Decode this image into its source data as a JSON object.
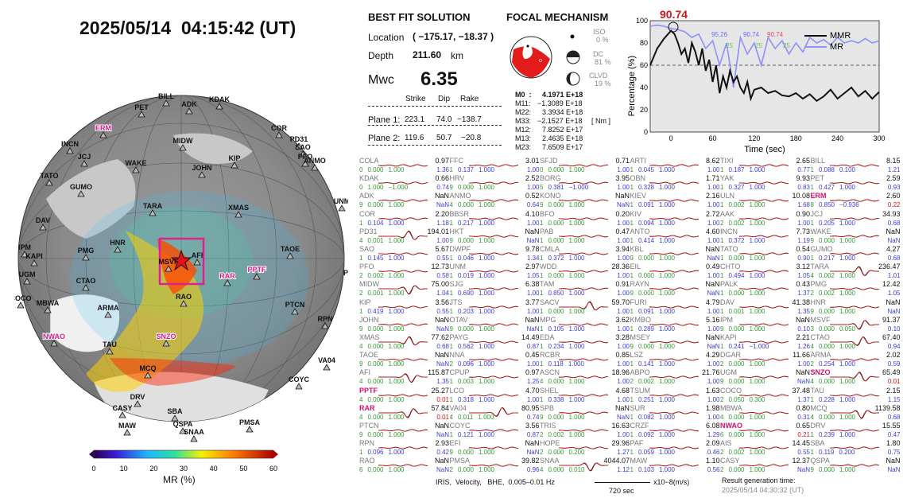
{
  "date_title": "2025/05/14  04:15:42 (UT)",
  "bfs": {
    "title": "BEST FIT SOLUTION",
    "location_label": "Location",
    "location_value": "( −175.17, −18.37 )",
    "depth_label": "Depth",
    "depth_value": "211.60",
    "depth_unit": "km",
    "mwc_label": "Mwc",
    "mwc_value": "6.35",
    "headers": [
      "Strike",
      "Dip",
      "Rake"
    ],
    "plane1_label": "Plane 1:",
    "plane1": [
      "223.1",
      "74.0",
      "−138.7"
    ],
    "plane2_label": "Plane 2:",
    "plane2": [
      "119.6",
      "50.7",
      "−20.8"
    ]
  },
  "fm": {
    "title": "FOCAL MECHANISM",
    "iso_label": "ISO",
    "iso_value": "0 %",
    "dc_label": "DC",
    "dc_value": "81 %",
    "clvd_label": "CLVD",
    "clvd_value": "19 %",
    "moments": [
      {
        "label": "M0  :",
        "value": "4.1971 E+18"
      },
      {
        "label": "M11:",
        "value": "−1.3089 E+18"
      },
      {
        "label": "M22:",
        "value": "3.3934 E+18"
      },
      {
        "label": "M33:",
        "value": "−2.1527 E+18"
      },
      {
        "label": "M12:",
        "value": "7.8252 E+17"
      },
      {
        "label": "M13:",
        "value": "2.4635 E+18"
      },
      {
        "label": "M23:",
        "value": "7.6509 E+17"
      }
    ],
    "unit": "[ Nm ]"
  },
  "mr_chart": {
    "peak_label": "90.74",
    "ylabel": "Percentage (%)",
    "xlabel": "Time (sec)",
    "legend": [
      "MMR",
      "MR"
    ],
    "inline_labels": [
      "95.26",
      "90.74",
      "90.74",
      "25",
      "25",
      "25"
    ],
    "x_ticks": [
      "0",
      "60",
      "120",
      "180",
      "240",
      "300"
    ],
    "y_ticks": [
      "0",
      "20",
      "40",
      "60",
      "80",
      "100"
    ]
  },
  "chart_data": {
    "type": "line",
    "xlabel": "Time (sec)",
    "ylabel": "Percentage (%)",
    "xlim": [
      -30,
      300
    ],
    "ylim": [
      0,
      100
    ],
    "threshold": 60,
    "series": [
      {
        "name": "MMR",
        "x": [
          -30,
          -20,
          -10,
          0,
          5,
          10,
          15,
          20,
          25,
          30,
          35,
          40,
          45,
          50,
          55,
          60,
          65,
          70,
          75,
          80,
          85,
          90,
          95,
          100,
          105,
          110,
          115,
          120,
          130,
          140,
          150,
          160,
          170,
          180,
          190,
          200,
          210,
          220,
          230,
          240,
          250,
          260,
          270,
          280,
          290,
          300
        ],
        "y": [
          60,
          75,
          84,
          91,
          88,
          80,
          70,
          75,
          62,
          80,
          72,
          60,
          75,
          55,
          65,
          45,
          60,
          35,
          50,
          40,
          55,
          45,
          50,
          40,
          35,
          45,
          30,
          38,
          40,
          35,
          37,
          33,
          32,
          35,
          30,
          34,
          28,
          32,
          38,
          30,
          35,
          40,
          32,
          37,
          30,
          36
        ]
      },
      {
        "name": "MR",
        "x": [
          -30,
          -20,
          -10,
          0,
          10,
          20,
          30,
          40,
          50,
          60,
          70,
          80,
          90,
          100,
          110,
          120,
          130,
          140,
          150,
          160,
          170,
          180,
          190,
          200,
          210,
          220,
          230,
          240,
          250,
          260,
          270,
          280,
          290,
          300
        ],
        "y": [
          95,
          96,
          95,
          93,
          92,
          90,
          85,
          88,
          75,
          82,
          60,
          80,
          40,
          85,
          70,
          80,
          60,
          85,
          75,
          82,
          70,
          80,
          72,
          85,
          80,
          83,
          78,
          85,
          80,
          82,
          80,
          84,
          80,
          82
        ]
      }
    ]
  },
  "map": {
    "stations": [
      "BILL",
      "ADK",
      "KDAK",
      "PET",
      "COR",
      "ERM",
      "INCN",
      "PD31",
      "SAO",
      "PFO",
      "ANMO",
      "JCJ",
      "TATO",
      "GUMO",
      "WAKE",
      "MIDW",
      "JOHN",
      "KIP",
      "TARA",
      "XMAS",
      "UNM",
      "DAV",
      "HNR",
      "TAOE",
      "PAYG",
      "IPM",
      "KAPI",
      "PMG",
      "AFI",
      "MSVF",
      "RAR",
      "PPTF",
      "UGM",
      "CTAO",
      "RAO",
      "COCO",
      "MBWA",
      "ARMA",
      "PTCN",
      "RPN",
      "NWAO",
      "SNZO",
      "TAU",
      "VA04",
      "MCQ",
      "COYC",
      "DRV",
      "CASY",
      "SBA",
      "QSPA",
      "MAW",
      "SNAA",
      "PMSA"
    ],
    "colorbar_ticks": [
      "0",
      "10",
      "20",
      "30",
      "40",
      "50",
      "60"
    ],
    "colorbar_label": "MR (%)"
  },
  "stations_grid": [
    [
      [
        "COLA",
        "0.97",
        "0",
        "0.000",
        "1.000",
        "1.36",
        "g"
      ],
      [
        "FFC",
        "3.01",
        "1",
        "0.137",
        "1.000",
        "1.00",
        "b"
      ],
      [
        "SFJD",
        "0.71",
        "0",
        "0.000",
        "1.000",
        "1.00",
        "g"
      ],
      [
        "ARTI",
        "8.62",
        "1",
        "0.045",
        "1.000",
        "1.00",
        "b"
      ],
      [
        "TIXI",
        "2.65",
        "1",
        "0.187",
        "1.000",
        "0.77",
        "b"
      ],
      [
        "BILL",
        "8.15",
        "1",
        "0.088",
        "0.100",
        "1.21",
        "b"
      ]
    ],
    [
      [
        "KDAK",
        "0.66",
        "0",
        "1.000",
        "−1.000",
        "0.74",
        "g"
      ],
      [
        "HRV",
        "2.52",
        "9",
        "0.000",
        "1.000",
        "1.00",
        "g"
      ],
      [
        "BORG",
        "3.95",
        "5",
        "0.381",
        "−1.000",
        "1.00",
        "b"
      ],
      [
        "OBN",
        "1.71",
        "1",
        "0.328",
        "1.000",
        "1.00",
        "b"
      ],
      [
        "YAK",
        "9.93",
        "1",
        "0.327",
        "1.000",
        "0.83",
        "b"
      ],
      [
        "PET",
        "2.59",
        "1",
        "0.427",
        "1.000",
        "0.93",
        "b"
      ]
    ],
    [
      [
        "ADK",
        "NaN",
        "9",
        "0.000",
        "1.000",
        "NaN",
        "g"
      ],
      [
        "ANMO",
        "0.52",
        "4",
        "0.000",
        "1.000",
        "0.64",
        "g"
      ],
      [
        "KONO",
        "NaN",
        "9",
        "0.000",
        "1.000",
        "NaN",
        "g"
      ],
      [
        "KIEV",
        "2.16",
        "1",
        "0.091",
        "1.000",
        "1.00",
        "b"
      ],
      [
        "ULN",
        "10.08",
        "1",
        "0.002",
        "1.000",
        "1.68",
        "g"
      ],
      [
        "ERM",
        "2.60",
        "8",
        "0.850",
        "−0.936",
        "0.22",
        "b",
        "red"
      ]
    ],
    [
      [
        "COR",
        "2.20",
        "1",
        "0.104",
        "1.000",
        "1.18",
        "b"
      ],
      [
        "BBSR",
        "4.10",
        "1",
        "0.217",
        "1.000",
        "1.00",
        "b"
      ],
      [
        "BFO",
        "0.20",
        "1",
        "0.000",
        "1.000",
        "1.00",
        "g"
      ],
      [
        "KIV",
        "2.72",
        "1",
        "0.094",
        "1.000",
        "1.00",
        "b"
      ],
      [
        "AAK",
        "0.90",
        "2",
        "0.002",
        "1.000",
        "1.00",
        "g"
      ],
      [
        "JCJ",
        "34.93",
        "1",
        "0.205",
        "1.000",
        "0.68",
        "b"
      ]
    ],
    [
      [
        "PD31",
        "194.01",
        "4",
        "0.001",
        "1.000",
        "1.00",
        "g"
      ],
      [
        "HKT",
        "NaN",
        "9",
        "0.000",
        "1.000",
        "NaN",
        "g"
      ],
      [
        "PAB",
        "0.47",
        "1",
        "0.000",
        "1.000",
        "1.00",
        "g"
      ],
      [
        "ANTO",
        "4.60",
        "1",
        "0.414",
        "1.000",
        "1.00",
        "b"
      ],
      [
        "INCN",
        "7.73",
        "1",
        "0.372",
        "1.000",
        "1.19",
        "b"
      ],
      [
        "WAKE",
        "NaN",
        "9",
        "0.000",
        "1.000",
        "NaN",
        "g"
      ]
    ],
    [
      [
        "SAO",
        "5.67",
        "1",
        "0.145",
        "1.000",
        "0.55",
        "b"
      ],
      [
        "DWPF",
        "9.78",
        "1",
        "0.046",
        "1.000",
        "1.34",
        "b"
      ],
      [
        "CMLA",
        "3.94",
        "1",
        "0.372",
        "1.000",
        "1.00",
        "b"
      ],
      [
        "KBL",
        "NaN",
        "9",
        "0.000",
        "1.000",
        "NaN",
        "g"
      ],
      [
        "TATO",
        "0.54",
        "1",
        "0.000",
        "1.000",
        "0.90",
        "g"
      ],
      [
        "GUMO",
        "4.27",
        "1",
        "0.217",
        "1.000",
        "0.68",
        "b"
      ]
    ],
    [
      [
        "PFO",
        "12.73",
        "2",
        "0.002",
        "1.000",
        "0.58",
        "g"
      ],
      [
        "UNM",
        "2.97",
        "1",
        "0.019",
        "1.000",
        "1.05",
        "b"
      ],
      [
        "WDD",
        "28.36",
        "1",
        "0.000",
        "1.000",
        "1.00",
        "g"
      ],
      [
        "EIL",
        "0.49",
        "1",
        "0.000",
        "1.000",
        "1.00",
        "g"
      ],
      [
        "CHTO",
        "3.12",
        "1",
        "0.494",
        "1.000",
        "1.05",
        "b"
      ],
      [
        "TARA",
        "236.47",
        "4",
        "0.002",
        "1.000",
        "1.01",
        "g"
      ]
    ],
    [
      [
        "MIDW",
        "75.00",
        "2",
        "0.001",
        "1.000",
        "1.04",
        "g"
      ],
      [
        "SJG",
        "6.38",
        "1",
        "0.690",
        "1.000",
        "1.00",
        "b"
      ],
      [
        "TAM",
        "0.91",
        "1",
        "0.850",
        "1.000",
        "1.00",
        "b"
      ],
      [
        "RAYN",
        "NaN",
        "9",
        "0.000",
        "1.000",
        "NaN",
        "g"
      ],
      [
        "PALK",
        "0.43",
        "1",
        "0.000",
        "1.000",
        "1.37",
        "g"
      ],
      [
        "PMG",
        "12.42",
        "2",
        "0.002",
        "1.000",
        "1.05",
        "g"
      ]
    ],
    [
      [
        "KIP",
        "3.56",
        "1",
        "0.419",
        "1.000",
        "0.55",
        "b"
      ],
      [
        "JTS",
        "3.77",
        "1",
        "0.203",
        "1.000",
        "1.00",
        "b"
      ],
      [
        "SACV",
        "59.70",
        "1",
        "0.000",
        "1.000",
        "1.00",
        "g"
      ],
      [
        "FURI",
        "4.79",
        "1",
        "0.091",
        "1.000",
        "1.00",
        "b"
      ],
      [
        "DAV",
        "41.38",
        "1",
        "0.001",
        "1.000",
        "1.35",
        "g"
      ],
      [
        "HNR",
        "NaN",
        "9",
        "0.000",
        "1.000",
        "NaN",
        "g"
      ]
    ],
    [
      [
        "JOHN",
        "NaN",
        "9",
        "0.000",
        "1.000",
        "NaN",
        "g"
      ],
      [
        "OTAV",
        "NaN",
        "9",
        "0.000",
        "1.000",
        "NaN",
        "g"
      ],
      [
        "MPG",
        "3.62",
        "1",
        "0.105",
        "1.000",
        "1.00",
        "b"
      ],
      [
        "KMBO",
        "5.16",
        "1",
        "0.289",
        "1.000",
        "1.00",
        "b"
      ],
      [
        "IPM",
        "NaN",
        "9",
        "0.000",
        "1.000",
        "0.10",
        "g"
      ],
      [
        "MSVF",
        "91.37",
        "3",
        "0.000",
        "0.050",
        "0.10",
        "g"
      ]
    ],
    [
      [
        "XMAS",
        "77.62",
        "4",
        "0.000",
        "1.000",
        "0.68",
        "g"
      ],
      [
        "PAYG",
        "14.49",
        "1",
        "0.562",
        "1.000",
        "0.87",
        "b"
      ],
      [
        "EDA",
        "3.28",
        "1",
        "0.234",
        "1.000",
        "1.00",
        "b"
      ],
      [
        "MSEY",
        "NaN",
        "9",
        "0.000",
        "1.000",
        "NaN",
        "g"
      ],
      [
        "KAPI",
        "2.21",
        "1",
        "0.241",
        "−1.000",
        "1.26",
        "b"
      ],
      [
        "CTAO",
        "67.40",
        "4",
        "0.000",
        "1.000",
        "0.94",
        "g"
      ]
    ],
    [
      [
        "TAOE",
        "NaN",
        "9",
        "0.000",
        "1.000",
        "NaN",
        "g"
      ],
      [
        "NNA",
        "0.45",
        "2",
        "0.096",
        "1.000",
        "1.00",
        "b"
      ],
      [
        "RCBR",
        "0.85",
        "1",
        "0.118",
        "1.000",
        "1.00",
        "b"
      ],
      [
        "LSZ",
        "4.29",
        "1",
        "0.141",
        "1.000",
        "1.00",
        "b"
      ],
      [
        "DGAR",
        "11.66",
        "2",
        "0.000",
        "1.000",
        "1.00",
        "g"
      ],
      [
        "ARMA",
        "2.02",
        "2",
        "0.254",
        "1.000",
        "0.59",
        "b"
      ]
    ],
    [
      [
        "AFI",
        "115.87",
        "4",
        "0.000",
        "1.000",
        "1.35",
        "g"
      ],
      [
        "CPUP",
        "0.97",
        "1",
        "0.003",
        "1.000",
        "1.25",
        "g"
      ],
      [
        "ASCN",
        "18.96",
        "4",
        "0.000",
        "1.000",
        "1.00",
        "g"
      ],
      [
        "ABPO",
        "21.76",
        "2",
        "0.002",
        "1.000",
        "1.00",
        "g"
      ],
      [
        "UGM",
        "NaN",
        "9",
        "0.000",
        "1.000",
        "NaN",
        "g"
      ],
      [
        "SNZO",
        "65.49",
        "4",
        "0.000",
        "1.000",
        "0.01",
        "g",
        "red"
      ]
    ],
    [
      [
        "PPTF",
        "25.27",
        "4",
        "0.000",
        "1.000",
        "0.01",
        "g",
        "red"
      ],
      [
        "LCO",
        "4.70",
        "1",
        "0.318",
        "1.000",
        "1.00",
        "b"
      ],
      [
        "SHEL",
        "4.68",
        "1",
        "0.338",
        "1.000",
        "1.00",
        "b"
      ],
      [
        "TSUM",
        "1.63",
        "1",
        "0.251",
        "1.000",
        "1.00",
        "b"
      ],
      [
        "COCO",
        "37.48",
        "2",
        "0.050",
        "0.300",
        "1.37",
        "g"
      ],
      [
        "TAU",
        "2.15",
        "1",
        "0.228",
        "1.000",
        "1.15",
        "b"
      ]
    ],
    [
      [
        "RAR",
        "57.84",
        "4",
        "0.000",
        "1.000",
        "0.01",
        "g",
        "red"
      ],
      [
        "VA04",
        "80.95",
        "4",
        "0.011",
        "1.000",
        "0.74",
        "g"
      ],
      [
        "SPB",
        "NaN",
        "9",
        "0.000",
        "1.000",
        "NaN",
        "g"
      ],
      [
        "SUR",
        "1.98",
        "1",
        "0.082",
        "1.000",
        "1.00",
        "b"
      ],
      [
        "MBWA",
        "0.80",
        "4",
        "0.000",
        "1.000",
        "0.31",
        "g"
      ],
      [
        "MCQ",
        "1139.58",
        "4",
        "0.000",
        "1.000",
        "0.68",
        "g"
      ]
    ],
    [
      [
        "PTCN",
        "NaN",
        "9",
        "0.000",
        "1.000",
        "NaN",
        "g"
      ],
      [
        "COYC",
        "3.56",
        "1",
        "0.121",
        "1.000",
        "0.87",
        "b"
      ],
      [
        "TRIS",
        "16.63",
        "2",
        "0.002",
        "1.000",
        "1.00",
        "g"
      ],
      [
        "CRZF",
        "6.08",
        "1",
        "0.092",
        "1.000",
        "1.29",
        "b"
      ],
      [
        "NWAO",
        "0.65",
        "6",
        "0.000",
        "1.000",
        "0.21",
        "g",
        "red"
      ],
      [
        "DRV",
        "15.55",
        "1",
        "0.239",
        "1.000",
        "0.47",
        "b"
      ]
    ],
    [
      [
        "RPN",
        "2.93",
        "1",
        "0.096",
        "1.000",
        "0.42",
        "b"
      ],
      [
        "EFI",
        "NaN",
        "9",
        "0.000",
        "1.000",
        "NaN",
        "g"
      ],
      [
        "HOPE",
        "29.96",
        "2",
        "0.000",
        "0.200",
        "1.27",
        "g"
      ],
      [
        "PAF",
        "2.09",
        "1",
        "0.059",
        "1.000",
        "0.46",
        "b"
      ],
      [
        "AIS",
        "14.45",
        "2",
        "0.002",
        "1.000",
        "0.55",
        "g"
      ],
      [
        "SBA",
        "1.80",
        "1",
        "0.119",
        "0.200",
        "0.75",
        "b"
      ]
    ],
    [
      [
        "RAO",
        "NaN",
        "6",
        "0.000",
        "1.000",
        "NaN",
        "g"
      ],
      [
        "PMSA",
        "39.82",
        "2",
        "0.000",
        "1.000",
        "0.96",
        "g"
      ],
      [
        "SNAA",
        "4044.07",
        "4",
        "0.000",
        "0.010",
        "1.12",
        "g"
      ],
      [
        "MAW",
        "1.10",
        "1",
        "0.103",
        "1.000",
        "0.56",
        "b"
      ],
      [
        "CASY",
        "12.37",
        "2",
        "0.000",
        "1.000",
        "NaN",
        "g"
      ],
      [
        "QSPA",
        "NaN",
        "9",
        "0.000",
        "1.000",
        "NaN",
        "g"
      ]
    ]
  ],
  "footer": {
    "iris": "IRIS,  Velocity,   BHE,  0.005–0.01 Hz",
    "scale": "720 sec",
    "units": "x10−8(m/s)",
    "result_label": "Result generation time:",
    "result_time": "2025/05/14 04:30:32 (UT)"
  }
}
